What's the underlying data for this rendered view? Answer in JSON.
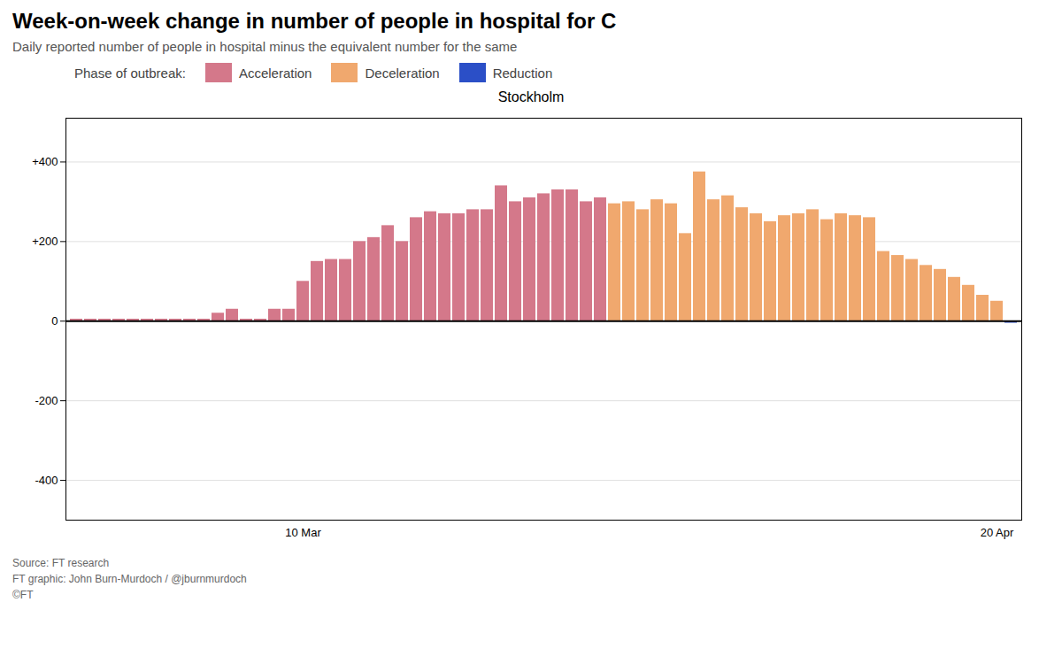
{
  "chart_data": {
    "type": "bar",
    "title": "Week-on-week change in number of people in hospital for C",
    "subtitle": "Daily reported number of people in hospital minus the equivalent number for the same",
    "chart_title": "Stockholm",
    "legend_title": "Phase of outbreak:",
    "source": "Source: FT research\nFT graphic: John Burn-Murdoch / @jburnmurdoch\n©FT",
    "categories": [
      null,
      null,
      null,
      null,
      null,
      null,
      null,
      null,
      null,
      null,
      null,
      null,
      null,
      null,
      null,
      null,
      "10 Mar",
      null,
      null,
      null,
      null,
      null,
      null,
      null,
      null,
      null,
      null,
      null,
      null,
      null,
      null,
      null,
      null,
      null,
      null,
      null,
      null,
      null,
      null,
      null,
      null,
      null,
      null,
      null,
      null,
      null,
      null,
      null,
      null,
      null,
      null,
      null,
      null,
      null,
      null,
      null,
      null,
      null,
      null,
      null,
      null,
      null,
      null,
      null,
      null,
      "20 Apr",
      null
    ],
    "series": [
      {
        "name": "Acceleration",
        "color": "#d4788a",
        "values": [
          5,
          5,
          5,
          5,
          5,
          5,
          5,
          5,
          5,
          5,
          20,
          30,
          5,
          5,
          30,
          30,
          100,
          150,
          155,
          155,
          200,
          210,
          240,
          200,
          260,
          275,
          270,
          270,
          280,
          280,
          340,
          300,
          310,
          320,
          330,
          330,
          300,
          310,
          null,
          null,
          null,
          null,
          null,
          null,
          null,
          null,
          null,
          null,
          null,
          null,
          null,
          null,
          null,
          null,
          null,
          null,
          null,
          null,
          null,
          null,
          null,
          null,
          null,
          null,
          null,
          null,
          null
        ]
      },
      {
        "name": "Deceleration",
        "color": "#f0a86e",
        "values": [
          null,
          null,
          null,
          null,
          null,
          null,
          null,
          null,
          null,
          null,
          null,
          null,
          null,
          null,
          null,
          null,
          null,
          null,
          null,
          null,
          null,
          null,
          null,
          null,
          null,
          null,
          null,
          null,
          null,
          null,
          null,
          null,
          null,
          null,
          null,
          null,
          null,
          null,
          295,
          300,
          280,
          305,
          295,
          220,
          375,
          305,
          315,
          285,
          270,
          250,
          265,
          270,
          280,
          255,
          270,
          265,
          260,
          175,
          165,
          155,
          140,
          130,
          110,
          90,
          65,
          50,
          null
        ]
      },
      {
        "name": "Reduction",
        "color": "#2b4fc7",
        "values": [
          null,
          null,
          null,
          null,
          null,
          null,
          null,
          null,
          null,
          null,
          null,
          null,
          null,
          null,
          null,
          null,
          null,
          null,
          null,
          null,
          null,
          null,
          null,
          null,
          null,
          null,
          null,
          null,
          null,
          null,
          null,
          null,
          null,
          null,
          null,
          null,
          null,
          null,
          null,
          null,
          null,
          null,
          null,
          null,
          null,
          null,
          null,
          null,
          null,
          null,
          null,
          null,
          null,
          null,
          null,
          null,
          null,
          null,
          null,
          null,
          null,
          null,
          null,
          null,
          null,
          null,
          -5
        ]
      }
    ],
    "ylim": [
      -500,
      510
    ],
    "yticks": [
      -400,
      -200,
      0,
      {
        "value": 200,
        "label": "+200"
      },
      {
        "value": 400,
        "label": "+400"
      }
    ],
    "grid": true
  }
}
